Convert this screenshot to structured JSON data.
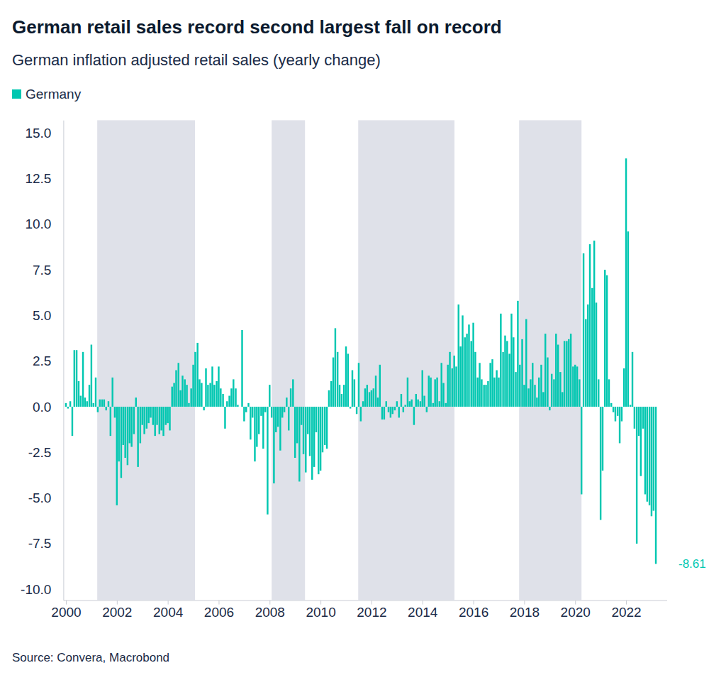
{
  "chart_data": {
    "type": "bar",
    "title": "German retail sales record second largest fall on record",
    "subtitle": "German inflation adjusted retail sales (yearly change)",
    "source": "Source: Convera, Macrobond",
    "x": [
      2000,
      2000.08,
      2000.17,
      2000.25,
      2000.33,
      2000.42,
      2000.5,
      2000.58,
      2000.67,
      2000.75,
      2000.83,
      2000.92,
      2001,
      2001.08,
      2001.17,
      2001.25,
      2001.33,
      2001.42,
      2001.5,
      2001.58,
      2001.67,
      2001.75,
      2001.83,
      2001.92,
      2002,
      2002.08,
      2002.17,
      2002.25,
      2002.33,
      2002.42,
      2002.5,
      2002.58,
      2002.67,
      2002.75,
      2002.83,
      2002.92,
      2003,
      2003.08,
      2003.17,
      2003.25,
      2003.33,
      2003.42,
      2003.5,
      2003.58,
      2003.67,
      2003.75,
      2003.83,
      2003.92,
      2004,
      2004.08,
      2004.17,
      2004.25,
      2004.33,
      2004.42,
      2004.5,
      2004.58,
      2004.67,
      2004.75,
      2004.83,
      2004.92,
      2005,
      2005.08,
      2005.17,
      2005.25,
      2005.33,
      2005.42,
      2005.5,
      2005.58,
      2005.67,
      2005.75,
      2005.83,
      2005.92,
      2006,
      2006.08,
      2006.17,
      2006.25,
      2006.33,
      2006.42,
      2006.5,
      2006.58,
      2006.67,
      2006.75,
      2006.83,
      2006.92,
      2007,
      2007.08,
      2007.17,
      2007.25,
      2007.33,
      2007.42,
      2007.5,
      2007.58,
      2007.67,
      2007.75,
      2007.83,
      2007.92,
      2008,
      2008.08,
      2008.17,
      2008.25,
      2008.33,
      2008.42,
      2008.5,
      2008.58,
      2008.67,
      2008.75,
      2008.83,
      2008.92,
      2009,
      2009.08,
      2009.17,
      2009.25,
      2009.33,
      2009.42,
      2009.5,
      2009.58,
      2009.67,
      2009.75,
      2009.83,
      2009.92,
      2010,
      2010.08,
      2010.17,
      2010.25,
      2010.33,
      2010.42,
      2010.5,
      2010.58,
      2010.67,
      2010.75,
      2010.83,
      2010.92,
      2011,
      2011.08,
      2011.17,
      2011.25,
      2011.33,
      2011.42,
      2011.5,
      2011.58,
      2011.67,
      2011.75,
      2011.83,
      2011.92,
      2012,
      2012.08,
      2012.17,
      2012.25,
      2012.33,
      2012.42,
      2012.5,
      2012.58,
      2012.67,
      2012.75,
      2012.83,
      2012.92,
      2013,
      2013.08,
      2013.17,
      2013.25,
      2013.33,
      2013.42,
      2013.5,
      2013.58,
      2013.67,
      2013.75,
      2013.83,
      2013.92,
      2014,
      2014.08,
      2014.17,
      2014.25,
      2014.33,
      2014.42,
      2014.5,
      2014.58,
      2014.67,
      2014.75,
      2014.83,
      2014.92,
      2015,
      2015.08,
      2015.17,
      2015.25,
      2015.33,
      2015.42,
      2015.5,
      2015.58,
      2015.67,
      2015.75,
      2015.83,
      2015.92,
      2016,
      2016.08,
      2016.17,
      2016.25,
      2016.33,
      2016.42,
      2016.5,
      2016.58,
      2016.67,
      2016.75,
      2016.83,
      2016.92,
      2017,
      2017.08,
      2017.17,
      2017.25,
      2017.33,
      2017.42,
      2017.5,
      2017.58,
      2017.67,
      2017.75,
      2017.83,
      2017.92,
      2018,
      2018.08,
      2018.17,
      2018.25,
      2018.33,
      2018.42,
      2018.5,
      2018.58,
      2018.67,
      2018.75,
      2018.83,
      2018.92,
      2019,
      2019.08,
      2019.17,
      2019.25,
      2019.33,
      2019.42,
      2019.5,
      2019.58,
      2019.67,
      2019.75,
      2019.83,
      2019.92,
      2020,
      2020.08,
      2020.17,
      2020.25,
      2020.33,
      2020.42,
      2020.5,
      2020.58,
      2020.67,
      2020.75,
      2020.83,
      2020.92,
      2021,
      2021.08,
      2021.17,
      2021.25,
      2021.33,
      2021.42,
      2021.5,
      2021.58,
      2021.67,
      2021.75,
      2021.83,
      2021.92,
      2022,
      2022.08,
      2022.17,
      2022.25,
      2022.33,
      2022.42,
      2022.5,
      2022.58,
      2022.67,
      2022.75,
      2022.83,
      2022.92,
      2023,
      2023.08,
      2023.17
    ],
    "series": [
      {
        "name": "Germany",
        "color": "#00c7b1",
        "values": [
          0.2,
          -0.1,
          0.3,
          -1.6,
          3.1,
          3.1,
          1.4,
          0.6,
          3.0,
          0.5,
          0.3,
          1.2,
          3.4,
          0.2,
          1.6,
          -0.3,
          0.4,
          0.4,
          0.4,
          -0.2,
          0.3,
          -1.6,
          1.6,
          -0.6,
          -5.4,
          -3.0,
          -3.9,
          -2.1,
          -2.8,
          -3.2,
          -2.0,
          -2.2,
          -1.5,
          0.5,
          -3.3,
          -2.0,
          -1.0,
          -1.5,
          -1.2,
          -0.9,
          -0.6,
          -1.0,
          -1.6,
          -1.0,
          -1.5,
          -1.3,
          -1.6,
          -1.0,
          -0.9,
          -1.3,
          1.1,
          1.3,
          2.0,
          2.4,
          0.9,
          1.7,
          1.5,
          1.2,
          0.2,
          1.0,
          2.3,
          3.0,
          3.5,
          1.5,
          1.3,
          -0.2,
          2.1,
          1.2,
          1.3,
          2.2,
          1.2,
          1.4,
          2.2,
          1.0,
          0.7,
          -1.2,
          0.3,
          0.6,
          1.0,
          1.5,
          1.0,
          0.1,
          0.0,
          4.2,
          -0.8,
          -0.3,
          0.2,
          -1.8,
          -0.6,
          -3.0,
          -2.2,
          -1.5,
          -0.5,
          -2.3,
          -0.3,
          -5.9,
          1.2,
          -0.6,
          -4.2,
          -1.4,
          -1.1,
          -2.4,
          -0.6,
          -0.3,
          0.5,
          -1.3,
          1.0,
          1.5,
          -2.8,
          -2.0,
          -4.1,
          -1.0,
          -2.6,
          -3.6,
          -1.5,
          -2.7,
          -4.0,
          -3.3,
          -1.4,
          -3.7,
          -3.5,
          -2.5,
          -2.1,
          -2.3,
          0.9,
          1.4,
          2.7,
          4.3,
          3.0,
          1.2,
          0.7,
          1.2,
          3.3,
          2.9,
          -0.1,
          2.0,
          1.5,
          -0.4,
          2.4,
          -0.8,
          0.3,
          1.0,
          1.2,
          0.8,
          0.9,
          1.0,
          1.7,
          0.5,
          2.3,
          -0.7,
          -0.7,
          0.3,
          -0.3,
          -0.6,
          -0.4,
          -0.2,
          0.3,
          -0.6,
          0.7,
          -0.3,
          0.1,
          1.6,
          0.3,
          0.4,
          -1.0,
          0.7,
          0.4,
          0.3,
          2.0,
          0.6,
          -0.3,
          1.7,
          1.6,
          0.2,
          1.5,
          1.6,
          0.3,
          2.4,
          1.3,
          0.2,
          2.3,
          3.0,
          2.1,
          2.8,
          2.2,
          5.6,
          3.3,
          5.0,
          3.8,
          4.0,
          4.5,
          3.6,
          4.6,
          3.0,
          1.6,
          2.4,
          1.5,
          1.2,
          1.2,
          1.4,
          2.4,
          2.6,
          1.6,
          2.0,
          1.6,
          5.1,
          3.0,
          3.9,
          3.6,
          2.9,
          5.1,
          3.8,
          1.9,
          5.8,
          2.3,
          3.7,
          1.2,
          4.8,
          1.0,
          1.5,
          2.4,
          1.2,
          0.5,
          1.6,
          2.3,
          0.8,
          4.0,
          2.7,
          -0.2,
          1.8,
          1.5,
          4.0,
          3.4,
          1.9,
          0.8,
          3.6,
          3.6,
          3.7,
          4.0,
          2.2,
          2.3,
          2.2,
          1.5,
          -4.8,
          8.4,
          4.8,
          5.6,
          8.9,
          6.5,
          9.1,
          5.7,
          1.5,
          -6.2,
          -3.5,
          7.5,
          7.2,
          1.5,
          0.2,
          -0.3,
          -0.8,
          -0.5,
          -2.0,
          -0.8,
          2.1,
          13.6,
          9.6,
          0.1,
          3.0,
          -1.2,
          -7.5,
          -1.6,
          -3.8,
          -1.2,
          -4.8,
          -5.2,
          -5.4,
          -6.0,
          -5.7,
          -8.61
        ]
      }
    ],
    "xlim": [
      1999.9,
      2023.6
    ],
    "ylim": [
      -10.6,
      15.7
    ],
    "xticks": [
      2000,
      2002,
      2004,
      2006,
      2008,
      2010,
      2012,
      2014,
      2016,
      2018,
      2020,
      2022
    ],
    "yticks": [
      {
        "value": -10,
        "label": "-10.0"
      },
      -7.5,
      {
        "value": -5,
        "label": "-5.0"
      },
      -2.5,
      {
        "value": 0,
        "label": "0.0"
      },
      2.5,
      {
        "value": 5,
        "label": "5.0"
      },
      7.5,
      {
        "value": 10,
        "label": "10.0"
      },
      12.5,
      {
        "value": 15,
        "label": "15.0"
      }
    ],
    "grid": false,
    "legend": "top-left",
    "shaded_periods": [
      [
        2001.23,
        2005.07
      ],
      [
        2008.08,
        2009.39
      ],
      [
        2011.48,
        2015.26
      ],
      [
        2017.8,
        2020.25
      ]
    ],
    "annotations": [
      {
        "text": "-8.61",
        "value": -8.61
      }
    ]
  }
}
